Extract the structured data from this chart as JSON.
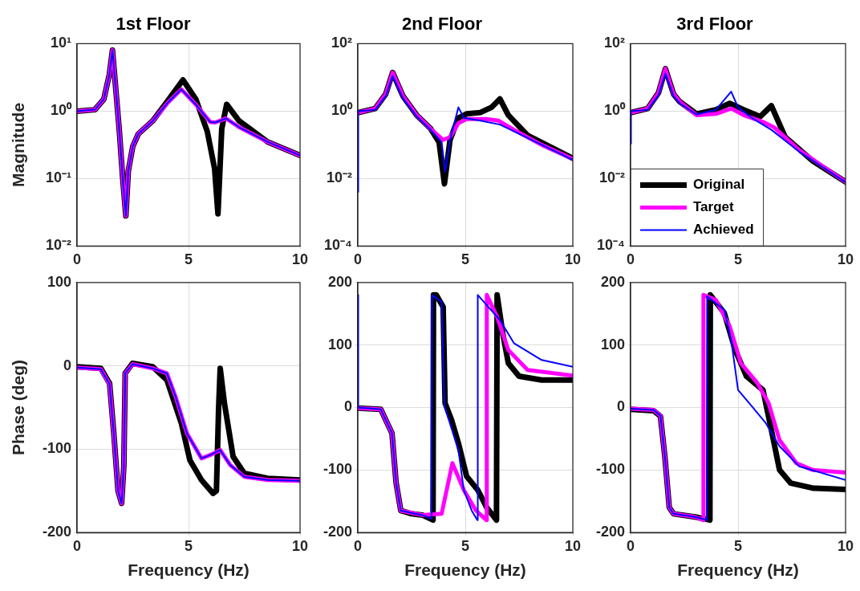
{
  "chart_data": [
    {
      "type": "line",
      "title": "1st Floor",
      "ylabel": "Magnitude",
      "log": "y",
      "grid": true,
      "legend": false,
      "xlim": [
        0,
        10
      ],
      "xticks": [
        0,
        5,
        10
      ],
      "ylim": [
        0.01,
        10
      ],
      "yticks": [
        {
          "value": 0.01,
          "label": "10⁻²"
        },
        {
          "value": 0.1,
          "label": "10⁻¹"
        },
        {
          "value": 1,
          "label": "10⁰"
        },
        {
          "value": 10,
          "label": "10¹"
        }
      ],
      "series": [
        {
          "color": "#000000",
          "x": [
            0,
            0.8,
            1.2,
            1.45,
            1.59,
            1.9,
            2.05,
            2.19,
            2.3,
            2.5,
            2.75,
            3.4,
            4.04,
            4.75,
            5.33,
            5.84,
            6.17,
            6.32,
            6.49,
            6.71,
            7.26,
            8.55,
            10
          ],
          "values": [
            1.0,
            1.05,
            1.5,
            3.5,
            8,
            0.5,
            0.1,
            0.028,
            0.13,
            0.3,
            0.46,
            0.72,
            1.38,
            2.9,
            1.5,
            0.5,
            0.14,
            0.03,
            0.55,
            1.26,
            0.72,
            0.35,
            0.22
          ]
        },
        {
          "color": "#ff00ff",
          "x": [
            0,
            0.8,
            1.2,
            1.45,
            1.59,
            1.9,
            2.05,
            2.19,
            2.3,
            2.5,
            2.75,
            3.4,
            4.04,
            4.68,
            5.33,
            5.97,
            6.2,
            6.68,
            7.26,
            8.55,
            10
          ],
          "values": [
            1.0,
            1.05,
            1.5,
            3.5,
            8,
            0.5,
            0.1,
            0.028,
            0.13,
            0.3,
            0.46,
            0.72,
            1.3,
            2.1,
            1.25,
            0.69,
            0.68,
            0.78,
            0.58,
            0.35,
            0.22
          ]
        },
        {
          "color": "#0000ff",
          "x": [
            0,
            0.8,
            1.2,
            1.45,
            1.59,
            1.9,
            2.05,
            2.19,
            2.3,
            2.5,
            2.75,
            3.4,
            4.04,
            4.68,
            5.33,
            5.97,
            6.2,
            6.68,
            7.26,
            8.55,
            10
          ],
          "values": [
            1.0,
            1.05,
            1.5,
            3.5,
            8,
            0.5,
            0.1,
            0.028,
            0.13,
            0.3,
            0.46,
            0.72,
            1.3,
            2.1,
            1.25,
            0.69,
            0.68,
            0.78,
            0.58,
            0.35,
            0.22
          ]
        }
      ]
    },
    {
      "type": "line",
      "title": "2nd Floor",
      "log": "y",
      "grid": true,
      "legend": false,
      "xlim": [
        0,
        10
      ],
      "xticks": [
        0,
        5,
        10
      ],
      "ylim": [
        0.0001,
        100
      ],
      "yticks": [
        {
          "value": 0.0001,
          "label": "10⁻⁴"
        },
        {
          "value": 0.01,
          "label": "10⁻²"
        },
        {
          "value": 1,
          "label": "10⁰"
        },
        {
          "value": 100,
          "label": "10²"
        }
      ],
      "series": [
        {
          "color": "#000000",
          "x": [
            0,
            0.81,
            1.3,
            1.62,
            2.1,
            2.74,
            3.39,
            3.78,
            4.03,
            4.29,
            4.68,
            5.06,
            5.7,
            6.22,
            6.61,
            7.0,
            7.9,
            10
          ],
          "values": [
            0.9,
            1.2,
            3.2,
            14,
            2.8,
            0.76,
            0.3,
            0.12,
            0.007,
            0.14,
            0.63,
            0.83,
            0.91,
            1.3,
            2.3,
            0.76,
            0.19,
            0.04
          ]
        },
        {
          "color": "#ff00ff",
          "x": [
            0,
            0.81,
            1.3,
            1.62,
            2.1,
            2.74,
            3.39,
            3.97,
            4.29,
            4.68,
            5.06,
            5.97,
            6.55,
            7.26,
            8.55,
            10
          ],
          "values": [
            0.9,
            1.2,
            3.2,
            14,
            2.8,
            0.76,
            0.3,
            0.14,
            0.17,
            0.44,
            0.58,
            0.58,
            0.52,
            0.28,
            0.1,
            0.038
          ]
        },
        {
          "color": "#0000ff",
          "x": [
            0,
            0.02,
            0.81,
            1.3,
            1.62,
            2.1,
            2.74,
            3.39,
            3.9,
            4.06,
            4.29,
            4.68,
            4.93,
            5.7,
            6.61,
            7.9,
            10
          ],
          "values": [
            0.004,
            1.0,
            1.1,
            2.8,
            11,
            2.4,
            0.7,
            0.28,
            0.12,
            0.016,
            0.14,
            1.3,
            0.63,
            0.52,
            0.4,
            0.16,
            0.036
          ]
        }
      ]
    },
    {
      "type": "line",
      "title": "3rd Floor",
      "log": "y",
      "grid": true,
      "legend": "bottom left",
      "xlim": [
        0,
        10
      ],
      "xticks": [
        0,
        5,
        10
      ],
      "ylim": [
        0.0001,
        100
      ],
      "yticks": [
        {
          "value": 0.0001,
          "label": "10⁻⁴"
        },
        {
          "value": 0.01,
          "label": "10⁻²"
        },
        {
          "value": 1,
          "label": "10⁰"
        },
        {
          "value": 100,
          "label": "10²"
        }
      ],
      "series": [
        {
          "name": "Original",
          "color": "#000000",
          "x": [
            0,
            0.8,
            1.3,
            1.62,
            2.0,
            2.29,
            3.07,
            3.97,
            4.61,
            5.26,
            6.03,
            6.55,
            7.19,
            8.48,
            10
          ],
          "values": [
            0.9,
            1.2,
            3.5,
            18,
            3.2,
            1.9,
            0.83,
            1.1,
            1.7,
            1.1,
            0.69,
            1.45,
            0.17,
            0.033,
            0.008
          ]
        },
        {
          "name": "Target",
          "color": "#ff00ff",
          "x": [
            0,
            0.8,
            1.3,
            1.62,
            2.0,
            2.29,
            3.07,
            3.97,
            4.68,
            5.26,
            6.16,
            6.68,
            7.84,
            10
          ],
          "values": [
            0.9,
            1.2,
            3.5,
            18,
            3.2,
            1.9,
            0.76,
            0.83,
            1.2,
            0.76,
            0.48,
            0.33,
            0.07,
            0.008
          ]
        },
        {
          "name": "Achieved",
          "color": "#0000ff",
          "x": [
            0,
            0.02,
            0.8,
            1.3,
            1.62,
            2.0,
            2.29,
            3.07,
            3.97,
            4.68,
            5.0,
            5.64,
            6.55,
            7.84,
            10
          ],
          "values": [
            0.11,
            1.0,
            1.1,
            3.0,
            13,
            2.8,
            1.7,
            0.8,
            1.1,
            3.8,
            1.3,
            0.63,
            0.28,
            0.063,
            0.0078
          ]
        }
      ]
    },
    {
      "type": "line",
      "xlabel": "Frequency (Hz)",
      "ylabel": "Phase (deg)",
      "grid": true,
      "legend": false,
      "xlim": [
        0,
        10
      ],
      "xticks": [
        0,
        5,
        10
      ],
      "ylim": [
        -200,
        100
      ],
      "yticks": [
        -200,
        -100,
        0,
        100
      ],
      "series": [
        {
          "color": "#000000",
          "x": [
            0,
            1.07,
            1.46,
            1.65,
            1.84,
            2.0,
            2.1,
            2.16,
            2.49,
            3.39,
            4.03,
            4.68,
            5.06,
            5.58,
            6.1,
            6.25,
            6.35,
            6.42,
            6.61,
            7.0,
            7.5,
            8.55,
            10
          ],
          "values": [
            -1,
            -3,
            -21,
            -81,
            -150,
            -165,
            -120,
            -9,
            3,
            -1,
            -17,
            -69,
            -113,
            -137,
            -153,
            -150,
            -50,
            -3,
            -45,
            -109,
            -129,
            -135,
            -137
          ]
        },
        {
          "color": "#ff00ff",
          "x": [
            0,
            1.07,
            1.46,
            1.65,
            1.84,
            2.0,
            2.1,
            2.16,
            2.49,
            3.39,
            4.03,
            4.42,
            4.93,
            5.58,
            5.97,
            6.42,
            6.87,
            7.5,
            8.55,
            10
          ],
          "values": [
            -2,
            -4,
            -22,
            -82,
            -150,
            -165,
            -120,
            -9,
            2,
            -3,
            -9,
            -37,
            -81,
            -111,
            -107,
            -101,
            -119,
            -133,
            -137,
            -138
          ]
        },
        {
          "color": "#0000ff",
          "x": [
            0,
            1.07,
            1.46,
            1.65,
            1.84,
            2.0,
            2.1,
            2.16,
            2.49,
            3.39,
            4.03,
            4.42,
            4.93,
            5.58,
            5.97,
            6.42,
            6.87,
            7.5,
            8.55,
            10
          ],
          "values": [
            -2,
            -4,
            -22,
            -82,
            -150,
            -165,
            -120,
            -9,
            2,
            -3,
            -9,
            -37,
            -81,
            -111,
            -107,
            -101,
            -119,
            -133,
            -137,
            -138
          ]
        }
      ]
    },
    {
      "type": "line",
      "xlabel": "Frequency (Hz)",
      "grid": true,
      "legend": false,
      "xlim": [
        0,
        10
      ],
      "xticks": [
        0,
        5,
        10
      ],
      "ylim": [
        -200,
        200
      ],
      "yticks": [
        -200,
        -100,
        0,
        100,
        200
      ],
      "series": [
        {
          "color": "#000000",
          "x": [
            0,
            1.07,
            1.59,
            1.78,
            2.0,
            2.5,
            3.0,
            3.5,
            3.52,
            3.65,
            3.97,
            4.06,
            4.36,
            4.68,
            5.06,
            5.58,
            6.0,
            6.45,
            6.48,
            6.74,
            7.0,
            7.5,
            8.55,
            10
          ],
          "values": [
            -1,
            -3,
            -41,
            -120,
            -165,
            -170,
            -172,
            -180,
            180,
            180,
            161,
            7,
            -20,
            -57,
            -110,
            -132,
            -160,
            -180,
            180,
            119,
            71,
            50,
            44,
            44
          ]
        },
        {
          "color": "#ff00ff",
          "x": [
            0,
            1.07,
            1.59,
            1.78,
            2.0,
            3.0,
            3.9,
            4.4,
            4.93,
            5.5,
            5.98,
            6.0,
            6.48,
            7.0,
            7.9,
            10
          ],
          "values": [
            -1,
            -3,
            -41,
            -120,
            -165,
            -172,
            -170,
            -89,
            -132,
            -165,
            -180,
            180,
            145,
            92,
            60,
            51
          ]
        },
        {
          "color": "#0000ff",
          "x": [
            0,
            0.02,
            1.07,
            1.59,
            1.78,
            2.0,
            3.0,
            3.43,
            3.45,
            3.9,
            4.03,
            4.68,
            4.93,
            5.3,
            5.56,
            5.58,
            6.61,
            7.26,
            8.55,
            10
          ],
          "values": [
            180,
            0,
            -3,
            -41,
            -120,
            -165,
            -172,
            -178,
            180,
            169,
            2,
            -68,
            -132,
            -165,
            -180,
            180,
            140,
            103,
            76,
            65
          ]
        }
      ]
    },
    {
      "type": "line",
      "xlabel": "Frequency (Hz)",
      "grid": true,
      "legend": false,
      "xlim": [
        0,
        10
      ],
      "xticks": [
        0,
        5,
        10
      ],
      "ylim": [
        -200,
        200
      ],
      "yticks": [
        -200,
        -100,
        0,
        100,
        200
      ],
      "series": [
        {
          "color": "#000000",
          "x": [
            0,
            1.07,
            1.39,
            1.6,
            1.8,
            2.0,
            3.0,
            3.69,
            3.71,
            4.36,
            4.87,
            5.39,
            6.16,
            6.55,
            6.93,
            7.45,
            8.48,
            10
          ],
          "values": [
            -3,
            -5,
            -14,
            -80,
            -160,
            -170,
            -175,
            -180,
            180,
            151,
            92,
            50,
            28,
            -36,
            -100,
            -121,
            -129,
            -131
          ]
        },
        {
          "color": "#ff00ff",
          "x": [
            0,
            1.07,
            1.39,
            1.6,
            1.8,
            2.0,
            3.0,
            3.37,
            3.39,
            3.97,
            4.61,
            5.13,
            5.9,
            6.42,
            6.93,
            7.71,
            8.48,
            10
          ],
          "values": [
            -2,
            -4,
            -13,
            -80,
            -160,
            -170,
            -175,
            -180,
            180,
            172,
            130,
            71,
            39,
            7,
            -52,
            -89,
            -100,
            -104
          ]
        },
        {
          "color": "#0000ff",
          "x": [
            0,
            1.07,
            1.39,
            1.6,
            1.8,
            2.0,
            3.0,
            3.54,
            3.56,
            4.36,
            4.68,
            5.0,
            5.64,
            6.29,
            6.93,
            7.84,
            10
          ],
          "values": [
            -2,
            -4,
            -13,
            -80,
            -160,
            -170,
            -175,
            -180,
            178,
            156,
            108,
            28,
            2,
            -25,
            -62,
            -94,
            -116
          ]
        }
      ]
    }
  ]
}
